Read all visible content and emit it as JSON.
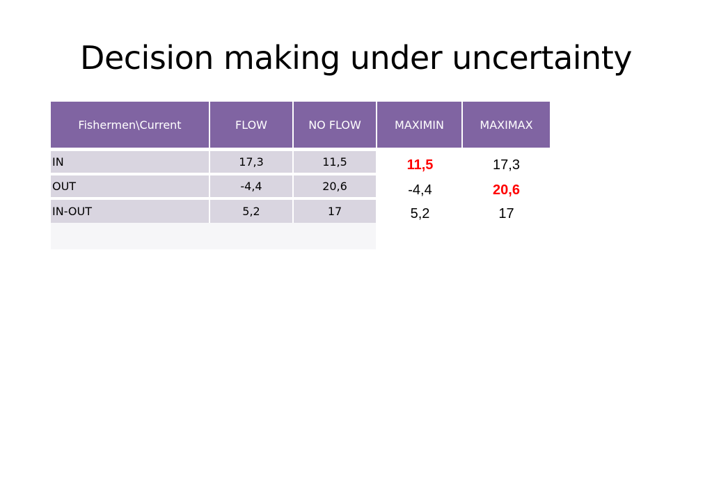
{
  "title": "Decision making under uncertainty",
  "table": {
    "headers": [
      "Fishermen\\Current",
      "FLOW",
      "NO FLOW",
      "MAXIMIN",
      "MAXIMAX"
    ],
    "rows": [
      {
        "label": "IN",
        "flow": "17,3",
        "no_flow": "11,5",
        "maximin": "11,5",
        "maximax": "17,3"
      },
      {
        "label": "OUT",
        "flow": "-4,4",
        "no_flow": "20,6",
        "maximin": "-4,4",
        "maximax": "20,6"
      },
      {
        "label": "IN-OUT",
        "flow": "5,2",
        "no_flow": "17",
        "maximin": "5,2",
        "maximax": "17"
      }
    ],
    "highlighted": {
      "maximin": "11,5",
      "maximax": "20,6"
    },
    "highlight_color": "#ff0000",
    "header_color": "#8064a2",
    "cell_color": "#d9d5e0"
  }
}
